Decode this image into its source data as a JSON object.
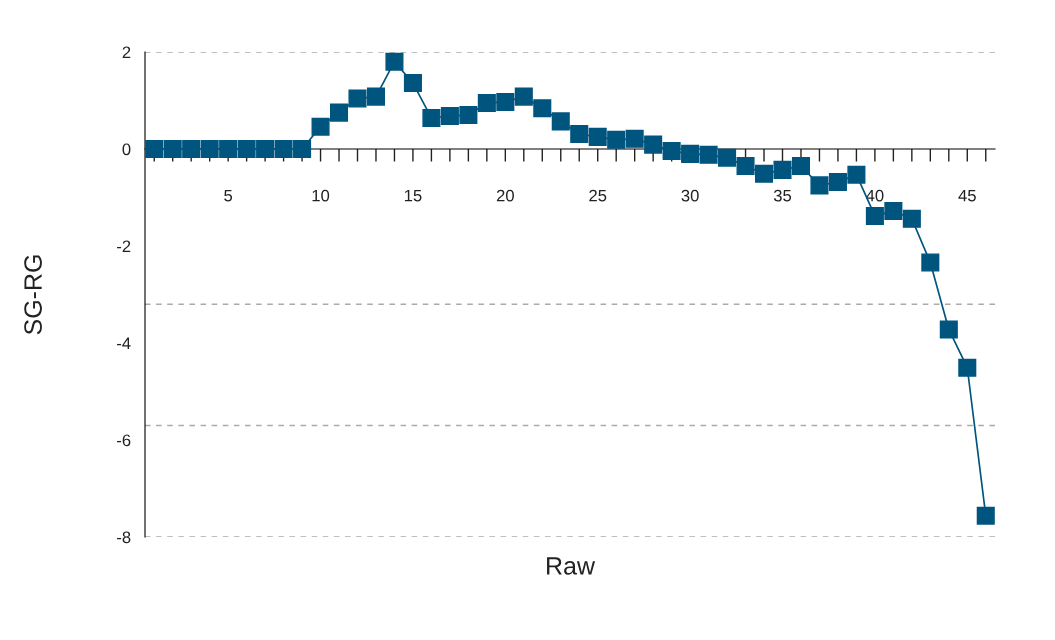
{
  "chart_data": {
    "type": "line",
    "xlabel": "Raw",
    "ylabel": "SG-RG",
    "x": [
      1,
      2,
      3,
      4,
      5,
      6,
      7,
      8,
      9,
      10,
      11,
      12,
      13,
      14,
      15,
      16,
      17,
      18,
      19,
      20,
      21,
      22,
      23,
      24,
      25,
      26,
      27,
      28,
      29,
      30,
      31,
      32,
      33,
      34,
      35,
      36,
      37,
      38,
      39,
      40,
      41,
      42,
      43,
      44,
      45,
      46
    ],
    "series": [
      {
        "color": "#00557f",
        "values": [
          0,
          0,
          0,
          0,
          0,
          0,
          0,
          0,
          0,
          0.46,
          0.75,
          1.04,
          1.08,
          1.8,
          1.36,
          0.64,
          0.68,
          0.7,
          0.95,
          0.97,
          1.08,
          0.84,
          0.57,
          0.31,
          0.25,
          0.19,
          0.21,
          0.09,
          -0.04,
          -0.1,
          -0.12,
          -0.18,
          -0.35,
          -0.51,
          -0.43,
          -0.35,
          -0.75,
          -0.68,
          -0.53,
          -1.38,
          -1.28,
          -1.44,
          -2.34,
          -3.72,
          -4.51,
          -7.56
        ]
      }
    ],
    "marker": "square",
    "line_style": "solid",
    "xlim": [
      0.5,
      46.5
    ],
    "ylim": [
      -8,
      2
    ],
    "xticks": [
      {
        "value": 1,
        "label": null
      },
      {
        "value": 2,
        "label": null
      },
      {
        "value": 3,
        "label": null
      },
      {
        "value": 4,
        "label": null
      },
      5,
      {
        "value": 6,
        "label": null
      },
      {
        "value": 7,
        "label": null
      },
      {
        "value": 8,
        "label": null
      },
      {
        "value": 9,
        "label": null
      },
      10,
      {
        "value": 11,
        "label": null
      },
      {
        "value": 12,
        "label": null
      },
      {
        "value": 13,
        "label": null
      },
      {
        "value": 14,
        "label": null
      },
      15,
      {
        "value": 16,
        "label": null
      },
      {
        "value": 17,
        "label": null
      },
      {
        "value": 18,
        "label": null
      },
      {
        "value": 19,
        "label": null
      },
      20,
      {
        "value": 21,
        "label": null
      },
      {
        "value": 22,
        "label": null
      },
      {
        "value": 23,
        "label": null
      },
      {
        "value": 24,
        "label": null
      },
      25,
      {
        "value": 26,
        "label": null
      },
      {
        "value": 27,
        "label": null
      },
      {
        "value": 28,
        "label": null
      },
      {
        "value": 29,
        "label": null
      },
      30,
      {
        "value": 31,
        "label": null
      },
      {
        "value": 32,
        "label": null
      },
      {
        "value": 33,
        "label": null
      },
      {
        "value": 34,
        "label": null
      },
      35,
      {
        "value": 36,
        "label": null
      },
      {
        "value": 37,
        "label": null
      },
      {
        "value": 38,
        "label": null
      },
      {
        "value": 39,
        "label": null
      },
      40,
      {
        "value": 41,
        "label": null
      },
      {
        "value": 42,
        "label": null
      },
      {
        "value": 43,
        "label": null
      },
      {
        "value": 44,
        "label": null
      },
      45,
      {
        "value": 46,
        "label": null
      }
    ],
    "yticks": [
      -8,
      -6,
      -4,
      -2,
      0,
      2
    ],
    "ref_lines": [
      {
        "axis": "y",
        "value": 2,
        "color": "#aaaaaa",
        "line_style": "dashed"
      },
      {
        "axis": "y",
        "value": -3.2,
        "color": "#aaaaaa",
        "line_style": "dashed"
      },
      {
        "axis": "y",
        "value": -5.7,
        "color": "#aaaaaa",
        "line_style": "dashed"
      },
      {
        "axis": "y",
        "value": -8,
        "color": "#aaaaaa",
        "line_style": "dashed"
      }
    ]
  }
}
